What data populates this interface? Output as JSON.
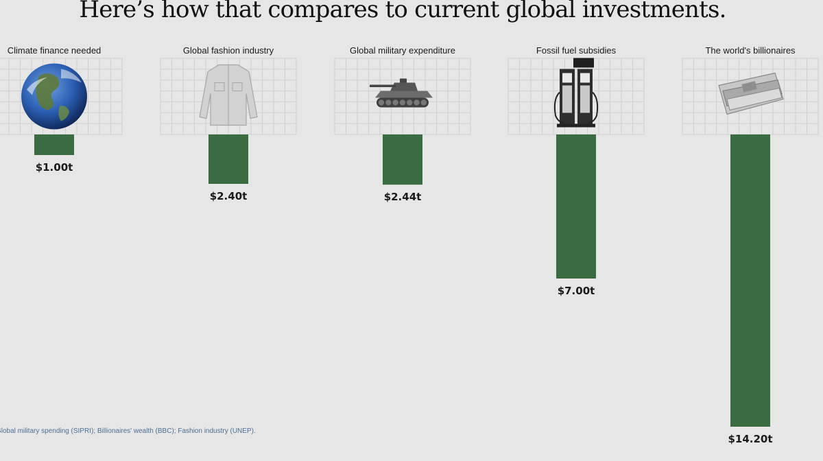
{
  "page": {
    "title": "Here’s how that compares to current global investments.",
    "source_note": "Global military spending (SIPRI); Billionaires' wealth (BBC); Fashion industry (UNEP)."
  },
  "chart_data": {
    "type": "bar",
    "orientation": "vertical-downward",
    "title": "Here’s how that compares to current global investments.",
    "categories": [
      "Climate finance needed",
      "Global fashion industry",
      "Global military expenditure",
      "Fossil fuel subsidies",
      "The world's billionaires"
    ],
    "values": [
      1.0,
      2.4,
      2.44,
      7.0,
      14.2
    ],
    "value_labels": [
      "$1.00t",
      "$2.40t",
      "$2.44t",
      "$7.00t",
      "$14.20t"
    ],
    "icons": [
      "earth-icon",
      "shirt-icon",
      "tank-icon",
      "fuel-pump-icon",
      "money-roll-icon"
    ],
    "unit": "trillion USD",
    "bar_color": "#3b6b40",
    "grid": false,
    "legend": "none"
  }
}
